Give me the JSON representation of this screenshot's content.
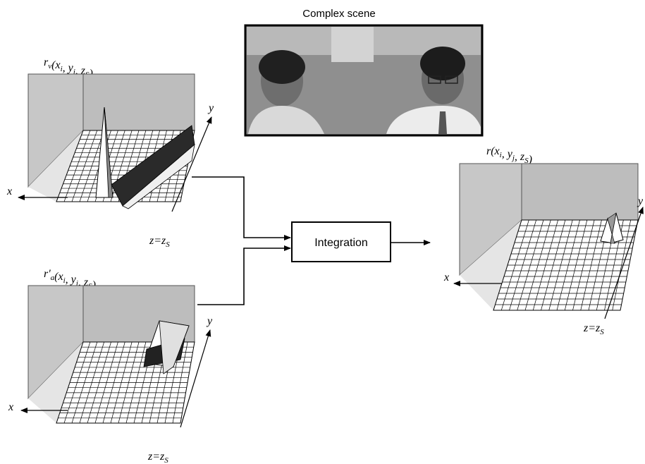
{
  "scene": {
    "title": "Complex scene"
  },
  "plots": {
    "rv": {
      "label": "r_v(x_i, y_j, z_S)",
      "x_axis": "x",
      "y_axis": "y",
      "z_label": "z=z_S"
    },
    "ra": {
      "label": "r'_a(x_i, y_j, z_S)",
      "x_axis": "x",
      "y_axis": "y",
      "z_label": "z=z_S"
    },
    "result": {
      "label": "r(x_i, y_j, z_S)",
      "x_axis": "x",
      "y_axis": "y",
      "z_label": "z=z_S"
    }
  },
  "integration": {
    "label": "Integration"
  },
  "colors": {
    "wall": "#c8c8c8",
    "wall_edge": "#555555",
    "grid_fill": "#ffffff",
    "grid_line": "#000000",
    "photo_bg": "#8c8c8c"
  }
}
